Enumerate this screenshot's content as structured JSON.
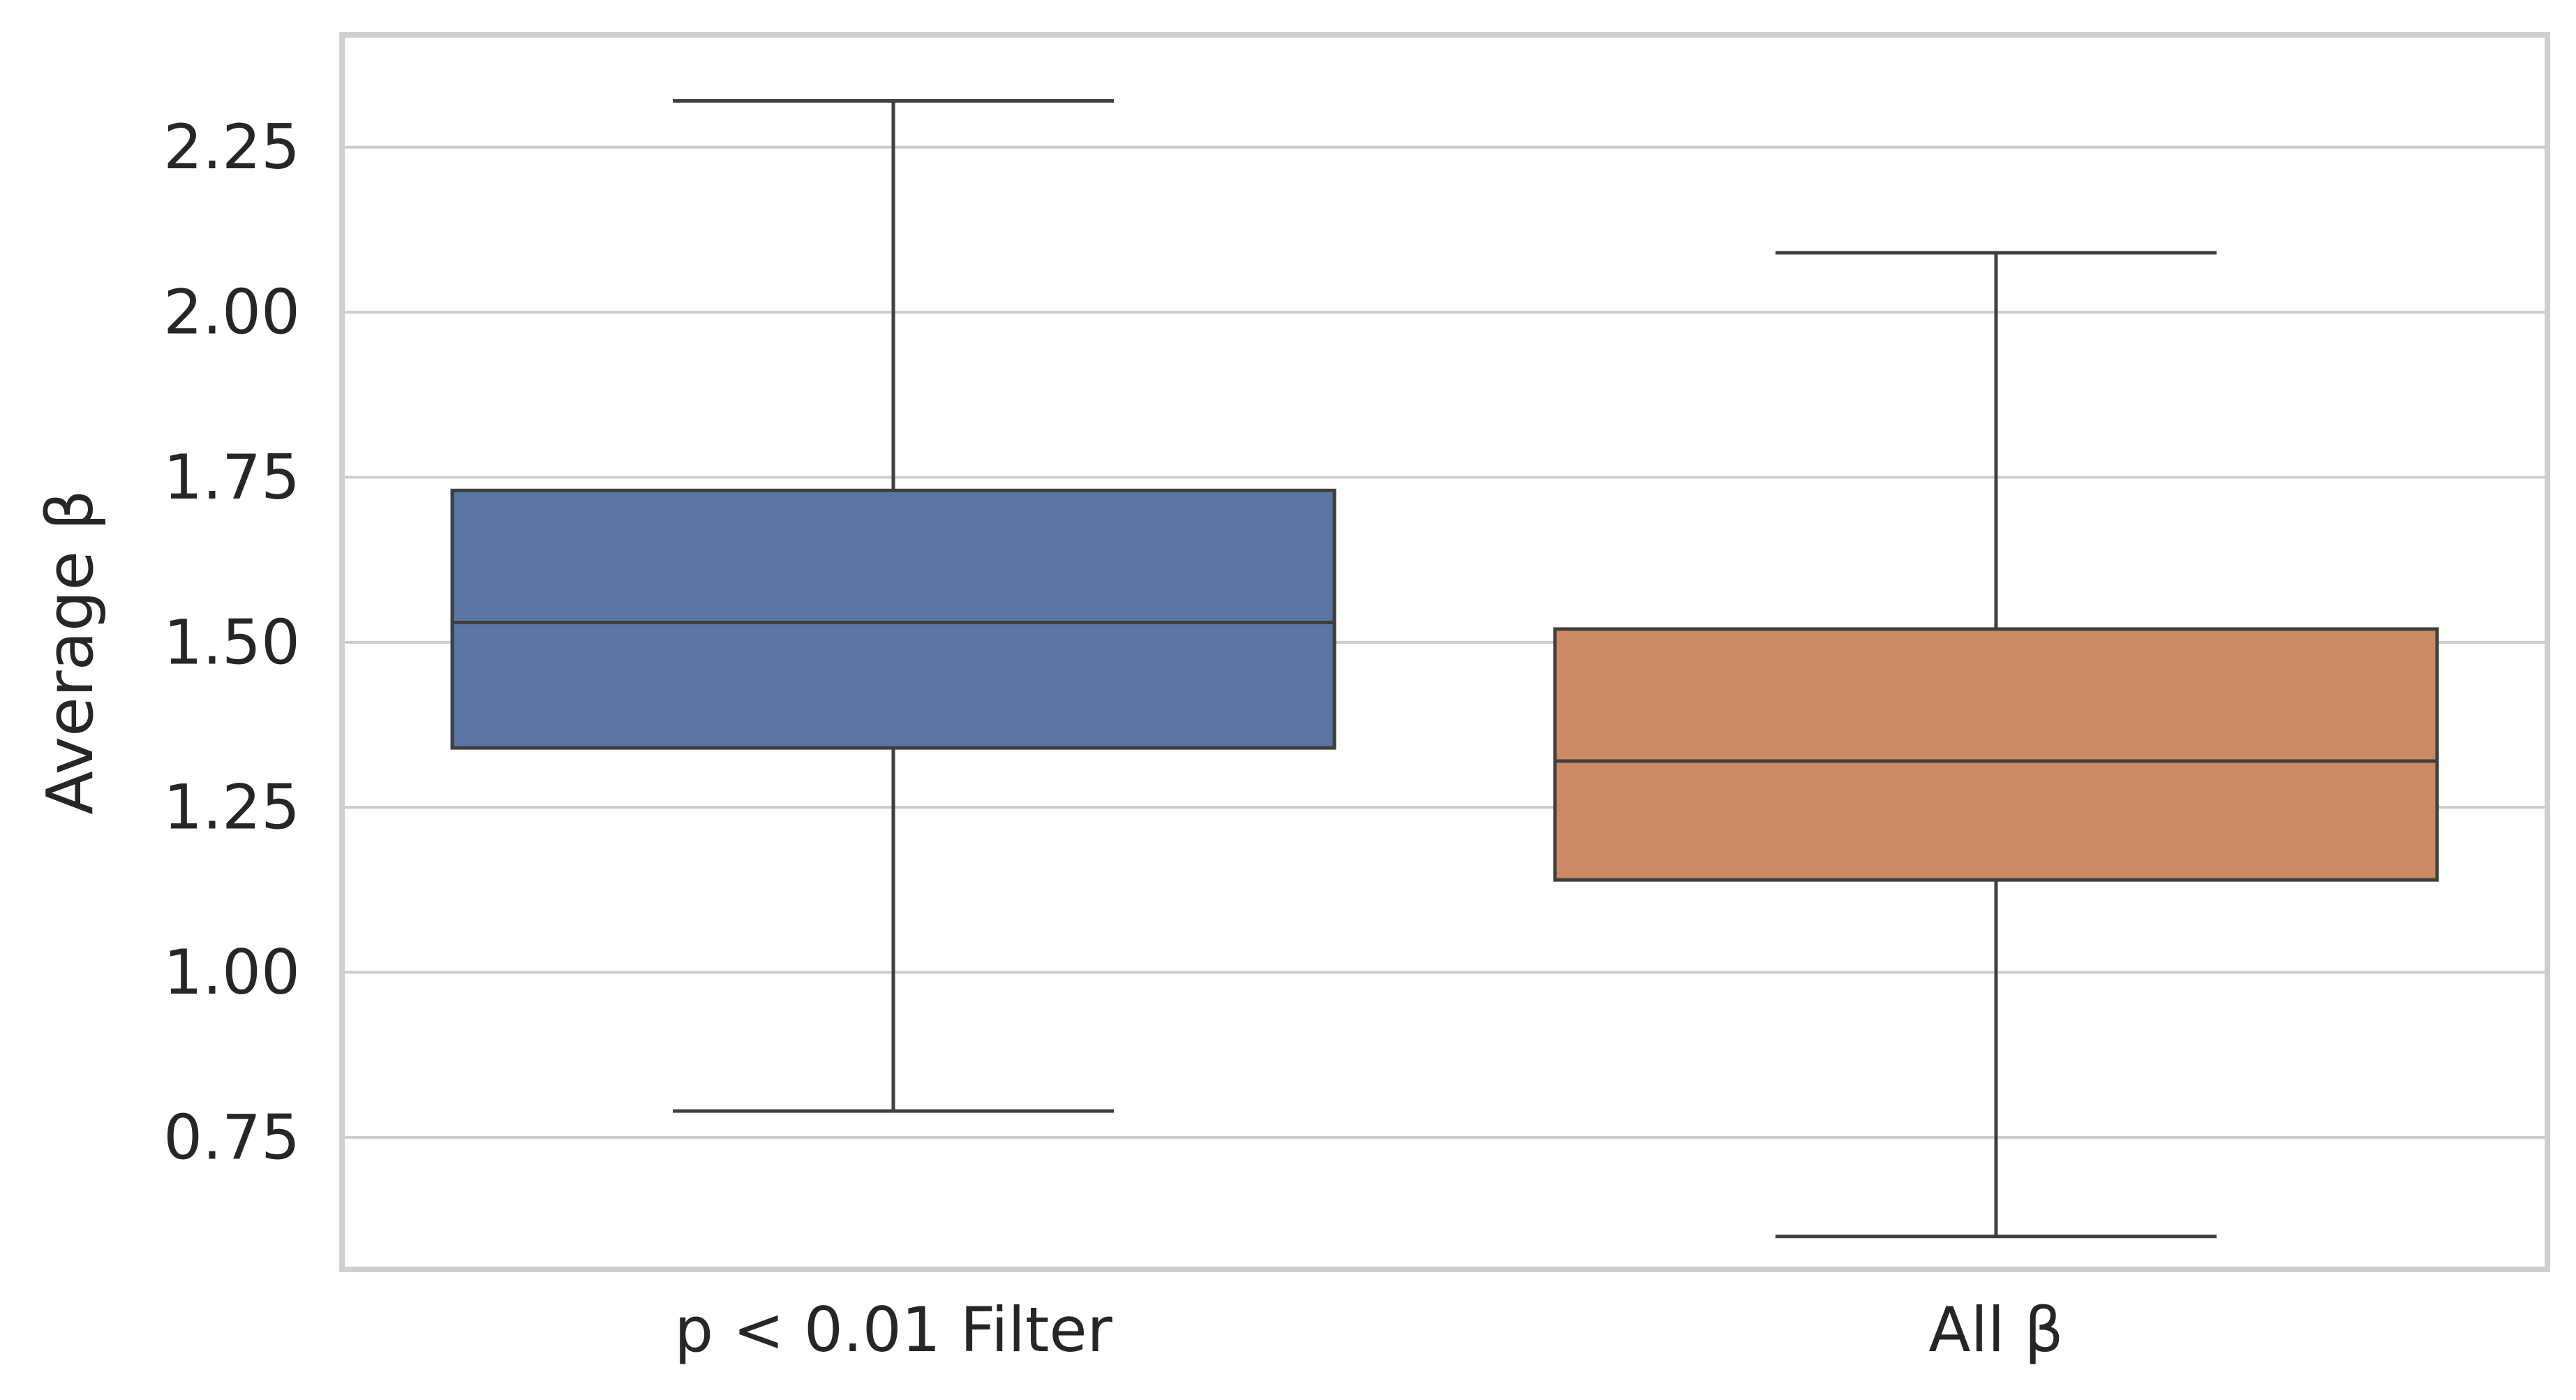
{
  "chart_data": {
    "type": "box",
    "categories": [
      "p < 0.01 Filter",
      "All β"
    ],
    "series": [
      {
        "category": "p < 0.01 Filter",
        "whisker_low": 0.79,
        "q1": 1.34,
        "median": 1.53,
        "q3": 1.73,
        "whisker_high": 2.32,
        "color": "#5875a4"
      },
      {
        "category": "All β",
        "whisker_low": 0.6,
        "q1": 1.14,
        "median": 1.32,
        "q3": 1.52,
        "whisker_high": 2.09,
        "color": "#cc8963"
      }
    ],
    "xlabel": "",
    "ylabel": "Average β",
    "yticks": [
      "0.75",
      "1.00",
      "1.25",
      "1.50",
      "1.75",
      "2.00",
      "2.25"
    ],
    "ylim": [
      0.55,
      2.42
    ],
    "grid": true,
    "gridline_color": "#cccccc",
    "line_color": "#3f3f3f"
  }
}
